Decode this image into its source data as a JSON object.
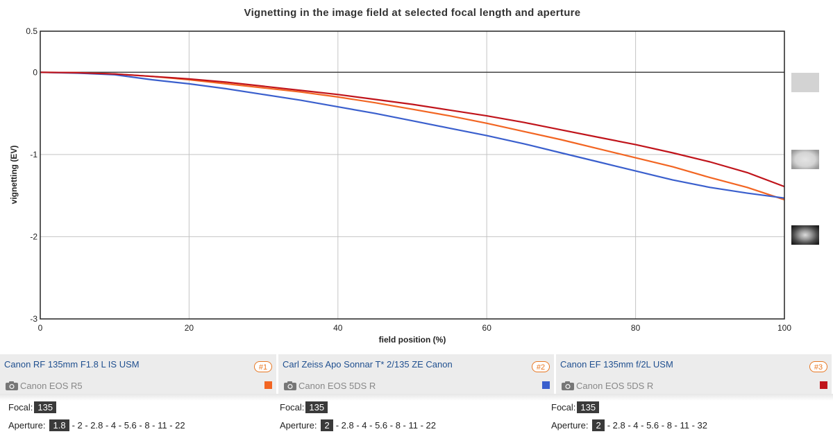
{
  "chart_data": {
    "type": "line",
    "title": "Vignetting in the image field at selected focal length and aperture",
    "xlabel": "field position (%)",
    "ylabel": "vignetting (EV)",
    "xlim": [
      0,
      100
    ],
    "ylim": [
      -3,
      0.5
    ],
    "x_ticks": [
      0,
      20,
      40,
      60,
      80,
      100
    ],
    "y_ticks": [
      0.5,
      0,
      -1,
      -2,
      -3
    ],
    "grid": true,
    "legend": "none",
    "x": [
      0,
      5,
      10,
      15,
      20,
      25,
      30,
      35,
      40,
      45,
      50,
      55,
      60,
      65,
      70,
      75,
      80,
      85,
      90,
      95,
      100
    ],
    "series": [
      {
        "color": "#f26522",
        "values": [
          0,
          -0.005,
          -0.02,
          -0.05,
          -0.09,
          -0.14,
          -0.19,
          -0.24,
          -0.3,
          -0.37,
          -0.45,
          -0.53,
          -0.62,
          -0.72,
          -0.82,
          -0.93,
          -1.04,
          -1.15,
          -1.28,
          -1.4,
          -1.55
        ]
      },
      {
        "color": "#3a5fcd",
        "values": [
          0,
          -0.01,
          -0.03,
          -0.09,
          -0.14,
          -0.2,
          -0.27,
          -0.34,
          -0.42,
          -0.5,
          -0.59,
          -0.68,
          -0.77,
          -0.87,
          -0.98,
          -1.09,
          -1.2,
          -1.31,
          -1.4,
          -1.47,
          -1.53
        ]
      },
      {
        "color": "#c0141b",
        "values": [
          0,
          -0.005,
          -0.02,
          -0.05,
          -0.08,
          -0.12,
          -0.17,
          -0.22,
          -0.27,
          -0.33,
          -0.39,
          -0.46,
          -0.53,
          -0.61,
          -0.7,
          -0.79,
          -0.88,
          -0.98,
          -1.09,
          -1.22,
          -1.39
        ]
      }
    ]
  },
  "lenses": [
    {
      "name": "Canon RF 135mm F1.8 L IS USM",
      "badge": "#1",
      "camera": "Canon EOS R5",
      "color": "#f26522",
      "focal_label": "Focal:",
      "focal": "135",
      "aperture_label": "Aperture:",
      "aperture_selected": "1.8",
      "aperture_rest": "- 2 - 2.8 - 4 - 5.6 - 8 - 11 - 22"
    },
    {
      "name": "Carl Zeiss Apo Sonnar T* 2/135 ZE Canon",
      "badge": "#2",
      "camera": "Canon EOS 5DS R",
      "color": "#3a5fcd",
      "focal_label": "Focal:",
      "focal": "135",
      "aperture_label": "Aperture:",
      "aperture_selected": "2",
      "aperture_rest": "- 2.8 - 4 - 5.6 - 8 - 11 - 22"
    },
    {
      "name": "Canon EF 135mm f/2L USM",
      "badge": "#3",
      "camera": "Canon EOS 5DS R",
      "color": "#c0141b",
      "focal_label": "Focal:",
      "focal": "135",
      "aperture_label": "Aperture:",
      "aperture_selected": "2",
      "aperture_rest": "- 2.8 - 4 - 5.6 - 8 - 11 - 32"
    }
  ],
  "side_thumbnails": [
    "flat-field-thumbnail",
    "mild-vignetting-thumbnail",
    "strong-vignetting-thumbnail"
  ]
}
